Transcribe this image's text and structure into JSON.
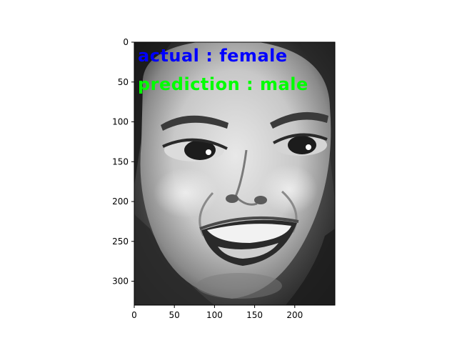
{
  "image": {
    "subject": "grayscale-face",
    "x_range": [
      0,
      250
    ],
    "y_range": [
      0,
      330
    ]
  },
  "overlay": {
    "actual_text": "actual : female",
    "actual_color": "#0000ff",
    "prediction_text": "prediction : male",
    "prediction_color": "#00ff00"
  },
  "axes": {
    "x_ticks": [
      {
        "value": 0,
        "label": "0"
      },
      {
        "value": 50,
        "label": "50"
      },
      {
        "value": 100,
        "label": "100"
      },
      {
        "value": 150,
        "label": "150"
      },
      {
        "value": 200,
        "label": "200"
      }
    ],
    "y_ticks": [
      {
        "value": 0,
        "label": "0"
      },
      {
        "value": 50,
        "label": "50"
      },
      {
        "value": 100,
        "label": "100"
      },
      {
        "value": 150,
        "label": "150"
      },
      {
        "value": 200,
        "label": "200"
      },
      {
        "value": 250,
        "label": "250"
      },
      {
        "value": 300,
        "label": "300"
      }
    ]
  }
}
